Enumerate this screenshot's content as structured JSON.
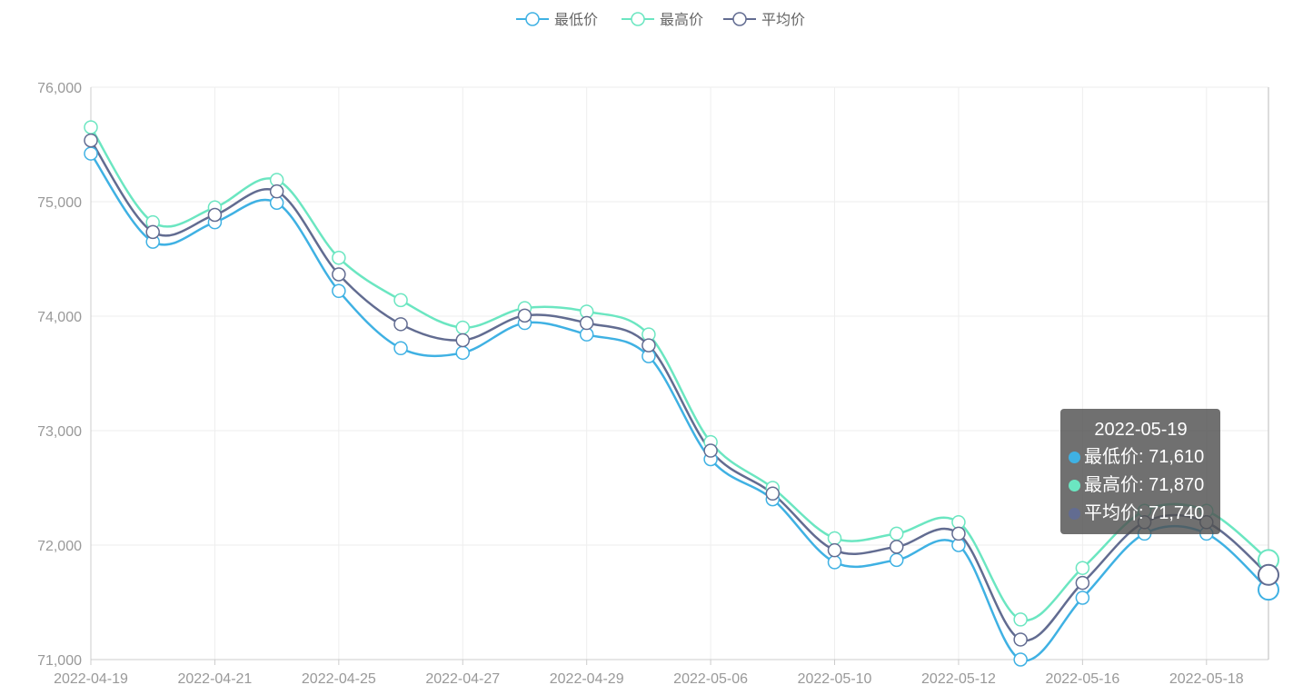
{
  "chart_data": {
    "type": "line",
    "smooth": true,
    "x": [
      "2022-04-19",
      "2022-04-20",
      "2022-04-21",
      "2022-04-22",
      "2022-04-25",
      "2022-04-26",
      "2022-04-27",
      "2022-04-28",
      "2022-04-29",
      "2022-05-05",
      "2022-05-06",
      "2022-05-09",
      "2022-05-10",
      "2022-05-11",
      "2022-05-12",
      "2022-05-13",
      "2022-05-16",
      "2022-05-17",
      "2022-05-18",
      "2022-05-19"
    ],
    "x_tick_labels": [
      "2022-04-19",
      "2022-04-21",
      "2022-04-25",
      "2022-04-27",
      "2022-04-29",
      "2022-05-06",
      "2022-05-10",
      "2022-05-12",
      "2022-05-16",
      "2022-05-18"
    ],
    "ylim": [
      71000,
      76000
    ],
    "y_ticks": [
      71000,
      72000,
      73000,
      74000,
      75000,
      76000
    ],
    "y_tick_labels": [
      "71,000",
      "72,000",
      "73,000",
      "74,000",
      "75,000",
      "76,000"
    ],
    "grid": true,
    "legend_position": "top-center",
    "series": [
      {
        "name": "最低价",
        "color": "#3fb1e3",
        "values": [
          75420,
          74650,
          74820,
          74990,
          74220,
          73720,
          73680,
          73940,
          73840,
          73650,
          72750,
          72400,
          71850,
          71870,
          72000,
          71000,
          71540,
          72100,
          72100,
          71610
        ]
      },
      {
        "name": "最高价",
        "color": "#6be6c1",
        "values": [
          75650,
          74820,
          74950,
          75190,
          74510,
          74140,
          73900,
          74070,
          74040,
          73840,
          72900,
          72500,
          72060,
          72100,
          72200,
          71350,
          71800,
          72300,
          72300,
          71870
        ]
      },
      {
        "name": "平均价",
        "color": "#626c91",
        "values": [
          75535,
          74735,
          74885,
          75090,
          74365,
          73930,
          73790,
          74005,
          73940,
          73745,
          72825,
          72450,
          71955,
          71985,
          72100,
          71175,
          71670,
          72200,
          72200,
          71740
        ]
      }
    ]
  },
  "tooltip": {
    "title": "2022-05-19",
    "rows": [
      {
        "label": "最低价: 71,610",
        "color": "#3fb1e3"
      },
      {
        "label": "最高价: 71,870",
        "color": "#6be6c1"
      },
      {
        "label": "平均价: 71,740",
        "color": "#626c91"
      }
    ]
  }
}
